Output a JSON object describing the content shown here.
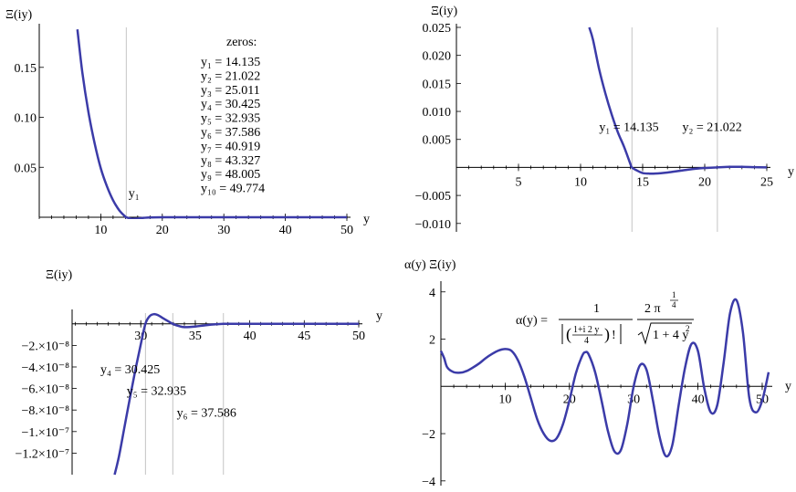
{
  "colors": {
    "curve": "#3b3ba8",
    "gridline": "#b5b5b5",
    "axis": "#000000"
  },
  "chart_data": [
    {
      "type": "line",
      "panel": "top-left",
      "ylabel": "Ξ(iy)",
      "xlabel": "y",
      "xlim": [
        0,
        50
      ],
      "ylim": [
        0,
        0.19
      ],
      "xticks": [
        10,
        20,
        30,
        40,
        50
      ],
      "xtick_labels": [
        "10",
        "20",
        "30",
        "40",
        "50"
      ],
      "yticks": [
        0.05,
        0.1,
        0.15
      ],
      "ytick_labels": [
        "0.05",
        "0.10",
        "0.15"
      ],
      "vlines": [
        14.135
      ],
      "grid": false,
      "annotations": [
        {
          "text": "y₁",
          "x": 14.5,
          "y": 0.02
        }
      ],
      "zeros_title": "zeros:",
      "zeros_list": [
        "y₁ = 14.135",
        "y₂ = 21.022",
        "y₃ = 25.011",
        "y₄ = 30.425",
        "y₅ = 32.935",
        "y₆ = 37.586",
        "y₇ = 40.919",
        "y₈ = 43.327",
        "y₉ = 48.005",
        "y₁₀ = 49.774"
      ],
      "series": [
        {
          "x": [
            6.2,
            7,
            8,
            9,
            10,
            11,
            12,
            13,
            14,
            14.135,
            15,
            16,
            17,
            18,
            20,
            25,
            30,
            40,
            50
          ],
          "y": [
            0.188,
            0.145,
            0.105,
            0.074,
            0.049,
            0.031,
            0.017,
            0.007,
            0.0005,
            0,
            -0.0015,
            -0.0012,
            -0.0006,
            -0.0002,
            0,
            0,
            0,
            0,
            0
          ]
        }
      ]
    },
    {
      "type": "line",
      "panel": "top-right",
      "ylabel": "Ξ(iy)",
      "xlabel": "y",
      "xlim": [
        0,
        25
      ],
      "ylim": [
        -0.0115,
        0.025
      ],
      "xticks": [
        5,
        10,
        15,
        20,
        25
      ],
      "xtick_labels": [
        "5",
        "10",
        "15",
        "20",
        "25"
      ],
      "yticks": [
        -0.01,
        -0.005,
        0.005,
        0.01,
        0.015,
        0.02,
        0.025
      ],
      "ytick_labels": [
        "−0.010",
        "−0.005",
        "0.005",
        "0.010",
        "0.015",
        "0.020",
        "0.025"
      ],
      "vlines": [
        14.135,
        21.022
      ],
      "grid": false,
      "annotations": [
        {
          "text": "y₁ = 14.135",
          "x": 11.5,
          "y": 0.0065
        },
        {
          "text": "y₂ = 21.022",
          "x": 18.2,
          "y": 0.0065
        }
      ],
      "series": [
        {
          "x": [
            10.7,
            11,
            11.5,
            12,
            12.5,
            13,
            13.5,
            14,
            14.135,
            14.5,
            15,
            15.5,
            16,
            17,
            18,
            19,
            20,
            21.022,
            22,
            23,
            24,
            25
          ],
          "y": [
            0.025,
            0.0228,
            0.0175,
            0.0132,
            0.0095,
            0.0063,
            0.0037,
            0.0007,
            0,
            -0.0005,
            -0.001,
            -0.0011,
            -0.0011,
            -0.0009,
            -0.0006,
            -0.0003,
            -0.0001,
            0,
            0.0001,
            0.0001,
            5e-05,
            0
          ]
        }
      ]
    },
    {
      "type": "line",
      "panel": "bottom-left",
      "ylabel": "Ξ(iy)",
      "xlabel": "y",
      "xlim": [
        23.7,
        50
      ],
      "ylim": [
        -1.4e-07,
        1e-08
      ],
      "xticks": [
        30,
        35,
        40,
        45,
        50
      ],
      "xtick_labels": [
        "30",
        "35",
        "40",
        "45",
        "50"
      ],
      "yticks": [
        -2e-08,
        -4e-08,
        -6e-08,
        -8e-08,
        -1e-07,
        -1.2e-07
      ],
      "ytick_labels": [
        "−2.×10⁻⁸",
        "−4.×10⁻⁸",
        "−6.×10⁻⁸",
        "−8.×10⁻⁸",
        "−1.×10⁻⁷",
        "−1.2×10⁻⁷"
      ],
      "vlines": [
        30.425,
        32.935,
        37.586
      ],
      "grid": false,
      "annotations": [
        {
          "text": "y₄ = 30.425",
          "x": 26.3,
          "y": -4.6e-08
        },
        {
          "text": "y₅ = 32.935",
          "x": 28.7,
          "y": -6.6e-08
        },
        {
          "text": "y₆ = 37.586",
          "x": 33.3,
          "y": -8.6e-08
        }
      ],
      "series": [
        {
          "x": [
            27.6,
            28,
            28.5,
            29,
            29.5,
            30,
            30.425,
            30.8,
            31.2,
            31.6,
            32,
            32.5,
            32.935,
            33.5,
            34,
            35,
            36,
            37.586,
            39,
            42,
            46,
            50
          ],
          "y": [
            -1.4e-07,
            -1.23e-07,
            -9.6e-08,
            -6.9e-08,
            -4.3e-08,
            -1.9e-08,
            0,
            7e-09,
            9e-09,
            8e-09,
            5.5e-09,
            2.5e-09,
            0,
            -2e-09,
            -3e-09,
            -2.5e-09,
            -1.2e-09,
            0,
            0,
            0,
            0,
            0
          ]
        }
      ]
    },
    {
      "type": "line",
      "panel": "bottom-right",
      "ylabel": "α(y) Ξ(iy)",
      "xlabel": "y",
      "xlim": [
        0,
        51
      ],
      "ylim": [
        -4.2,
        4.3
      ],
      "xticks": [
        10,
        20,
        30,
        40,
        50
      ],
      "xtick_labels": [
        "10",
        "20",
        "30",
        "40",
        "50"
      ],
      "yticks": [
        -4,
        -2,
        2,
        4
      ],
      "ytick_labels": [
        "−4",
        "−2",
        "2",
        "4"
      ],
      "grid": false,
      "formula": {
        "lhs": "α(y) =",
        "num1": "1",
        "frac_num": "1+i 2 y",
        "frac_den": "4",
        "factorial": "!",
        "num2_base": "2 π",
        "exp_num": "1",
        "exp_den": "4",
        "sqrt_body": "1 + 4 y",
        "sqrt_exp": "2"
      },
      "series": [
        {
          "x": [
            0,
            0.5,
            1,
            2,
            3,
            4,
            5,
            6,
            7,
            8,
            9,
            10,
            11,
            12,
            13,
            14,
            15,
            16,
            17,
            18,
            19,
            20,
            21,
            22,
            22.5,
            23,
            24,
            25,
            26,
            27,
            28,
            29,
            30,
            31,
            32,
            33,
            34,
            35,
            36,
            37,
            38,
            39,
            40,
            41,
            42,
            43,
            44,
            45,
            46,
            47,
            48,
            49,
            50,
            51
          ],
          "y": [
            1.5,
            1.2,
            0.8,
            0.6,
            0.58,
            0.65,
            0.8,
            0.98,
            1.2,
            1.38,
            1.52,
            1.58,
            1.5,
            1.1,
            0.4,
            -0.5,
            -1.4,
            -2.0,
            -2.3,
            -2.2,
            -1.6,
            -0.6,
            0.55,
            1.3,
            1.45,
            1.35,
            0.6,
            -0.6,
            -1.9,
            -2.75,
            -2.7,
            -1.6,
            0.0,
            0.9,
            0.7,
            -0.6,
            -2.1,
            -2.95,
            -2.5,
            -0.8,
            0.8,
            1.8,
            1.5,
            -0.1,
            -1.1,
            -0.8,
            1.0,
            3.1,
            3.65,
            2.3,
            -0.5,
            -1.1,
            -0.6,
            0.6
          ]
        }
      ]
    }
  ]
}
